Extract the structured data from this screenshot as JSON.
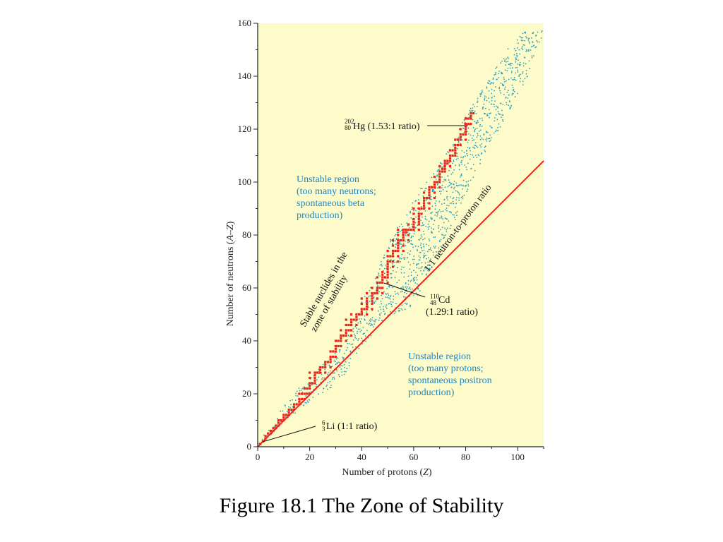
{
  "caption": "Figure 18.1 The Zone of Stability",
  "chart_data": {
    "type": "scatter",
    "xlabel_main": "Number of protons (",
    "xlabel_var": "Z",
    "xlabel_end": ")",
    "ylabel_main": "Number of neutrons (",
    "ylabel_var": "A–Z",
    "ylabel_end": ")",
    "xlim": [
      0,
      110
    ],
    "ylim": [
      0,
      160
    ],
    "x_ticks": [
      0,
      20,
      40,
      60,
      80,
      100
    ],
    "y_ticks": [
      0,
      20,
      40,
      60,
      80,
      100,
      120,
      140,
      160
    ],
    "grid": false,
    "colors": {
      "background": "#fdfbc9",
      "stable": "#e8241b",
      "unstable": "#2a9fb8",
      "ratio_line": "#e8241b"
    },
    "series": [
      {
        "role": "stable",
        "points": [
          [
            1,
            1
          ],
          [
            2,
            2
          ],
          [
            3,
            3
          ],
          [
            3,
            4
          ],
          [
            4,
            5
          ],
          [
            5,
            5
          ],
          [
            5,
            6
          ],
          [
            6,
            6
          ],
          [
            6,
            7
          ],
          [
            7,
            7
          ],
          [
            7,
            8
          ],
          [
            8,
            8
          ],
          [
            8,
            9
          ],
          [
            8,
            10
          ],
          [
            9,
            10
          ],
          [
            10,
            10
          ],
          [
            10,
            11
          ],
          [
            10,
            12
          ],
          [
            11,
            12
          ],
          [
            12,
            12
          ],
          [
            12,
            13
          ],
          [
            12,
            14
          ],
          [
            13,
            14
          ],
          [
            14,
            14
          ],
          [
            14,
            15
          ],
          [
            14,
            16
          ],
          [
            15,
            16
          ],
          [
            16,
            16
          ],
          [
            16,
            17
          ],
          [
            16,
            18
          ],
          [
            16,
            20
          ],
          [
            17,
            18
          ],
          [
            17,
            20
          ],
          [
            18,
            18
          ],
          [
            18,
            20
          ],
          [
            18,
            22
          ],
          [
            19,
            20
          ],
          [
            19,
            22
          ],
          [
            20,
            20
          ],
          [
            20,
            22
          ],
          [
            20,
            23
          ],
          [
            20,
            24
          ],
          [
            20,
            26
          ],
          [
            20,
            28
          ],
          [
            21,
            24
          ],
          [
            22,
            24
          ],
          [
            22,
            25
          ],
          [
            22,
            26
          ],
          [
            22,
            27
          ],
          [
            22,
            28
          ],
          [
            23,
            28
          ],
          [
            24,
            28
          ],
          [
            24,
            29
          ],
          [
            24,
            30
          ],
          [
            25,
            30
          ],
          [
            26,
            28
          ],
          [
            26,
            30
          ],
          [
            26,
            31
          ],
          [
            26,
            32
          ],
          [
            27,
            32
          ],
          [
            28,
            30
          ],
          [
            28,
            32
          ],
          [
            28,
            33
          ],
          [
            28,
            34
          ],
          [
            28,
            36
          ],
          [
            29,
            34
          ],
          [
            29,
            36
          ],
          [
            30,
            34
          ],
          [
            30,
            36
          ],
          [
            30,
            37
          ],
          [
            30,
            38
          ],
          [
            30,
            40
          ],
          [
            31,
            38
          ],
          [
            31,
            40
          ],
          [
            32,
            38
          ],
          [
            32,
            40
          ],
          [
            32,
            41
          ],
          [
            32,
            42
          ],
          [
            32,
            44
          ],
          [
            33,
            42
          ],
          [
            34,
            40
          ],
          [
            34,
            42
          ],
          [
            34,
            43
          ],
          [
            34,
            44
          ],
          [
            34,
            46
          ],
          [
            34,
            48
          ],
          [
            35,
            44
          ],
          [
            35,
            46
          ],
          [
            36,
            42
          ],
          [
            36,
            44
          ],
          [
            36,
            46
          ],
          [
            36,
            47
          ],
          [
            36,
            48
          ],
          [
            36,
            50
          ],
          [
            37,
            48
          ],
          [
            38,
            46
          ],
          [
            38,
            48
          ],
          [
            38,
            49
          ],
          [
            38,
            50
          ],
          [
            39,
            50
          ],
          [
            40,
            50
          ],
          [
            40,
            51
          ],
          [
            40,
            52
          ],
          [
            40,
            54
          ],
          [
            40,
            56
          ],
          [
            41,
            52
          ],
          [
            42,
            50
          ],
          [
            42,
            52
          ],
          [
            42,
            53
          ],
          [
            42,
            54
          ],
          [
            42,
            55
          ],
          [
            42,
            56
          ],
          [
            42,
            58
          ],
          [
            44,
            52
          ],
          [
            44,
            54
          ],
          [
            44,
            55
          ],
          [
            44,
            56
          ],
          [
            44,
            57
          ],
          [
            44,
            58
          ],
          [
            44,
            60
          ],
          [
            45,
            58
          ],
          [
            46,
            56
          ],
          [
            46,
            58
          ],
          [
            46,
            59
          ],
          [
            46,
            60
          ],
          [
            46,
            62
          ],
          [
            46,
            64
          ],
          [
            47,
            60
          ],
          [
            47,
            62
          ],
          [
            48,
            58
          ],
          [
            48,
            60
          ],
          [
            48,
            62
          ],
          [
            48,
            63
          ],
          [
            48,
            64
          ],
          [
            48,
            65
          ],
          [
            48,
            66
          ],
          [
            49,
            64
          ],
          [
            50,
            62
          ],
          [
            50,
            64
          ],
          [
            50,
            65
          ],
          [
            50,
            66
          ],
          [
            50,
            67
          ],
          [
            50,
            68
          ],
          [
            50,
            69
          ],
          [
            50,
            70
          ],
          [
            50,
            72
          ],
          [
            50,
            74
          ],
          [
            51,
            70
          ],
          [
            51,
            72
          ],
          [
            52,
            68
          ],
          [
            52,
            70
          ],
          [
            52,
            72
          ],
          [
            52,
            73
          ],
          [
            52,
            74
          ],
          [
            52,
            76
          ],
          [
            52,
            78
          ],
          [
            53,
            74
          ],
          [
            54,
            70
          ],
          [
            54,
            72
          ],
          [
            54,
            74
          ],
          [
            54,
            75
          ],
          [
            54,
            76
          ],
          [
            54,
            77
          ],
          [
            54,
            78
          ],
          [
            54,
            80
          ],
          [
            54,
            82
          ],
          [
            55,
            78
          ],
          [
            56,
            74
          ],
          [
            56,
            76
          ],
          [
            56,
            78
          ],
          [
            56,
            79
          ],
          [
            56,
            80
          ],
          [
            56,
            81
          ],
          [
            56,
            82
          ],
          [
            57,
            81
          ],
          [
            57,
            82
          ],
          [
            58,
            78
          ],
          [
            58,
            80
          ],
          [
            58,
            82
          ],
          [
            58,
            84
          ],
          [
            59,
            82
          ],
          [
            60,
            82
          ],
          [
            60,
            83
          ],
          [
            60,
            84
          ],
          [
            60,
            85
          ],
          [
            60,
            86
          ],
          [
            60,
            88
          ],
          [
            60,
            90
          ],
          [
            62,
            82
          ],
          [
            62,
            84
          ],
          [
            62,
            85
          ],
          [
            62,
            86
          ],
          [
            62,
            87
          ],
          [
            62,
            88
          ],
          [
            62,
            90
          ],
          [
            62,
            92
          ],
          [
            63,
            88
          ],
          [
            63,
            90
          ],
          [
            64,
            90
          ],
          [
            64,
            91
          ],
          [
            64,
            92
          ],
          [
            64,
            93
          ],
          [
            64,
            94
          ],
          [
            64,
            96
          ],
          [
            65,
            94
          ],
          [
            66,
            90
          ],
          [
            66,
            92
          ],
          [
            66,
            94
          ],
          [
            66,
            95
          ],
          [
            66,
            96
          ],
          [
            66,
            97
          ],
          [
            66,
            98
          ],
          [
            67,
            98
          ],
          [
            68,
            94
          ],
          [
            68,
            96
          ],
          [
            68,
            98
          ],
          [
            68,
            99
          ],
          [
            68,
            100
          ],
          [
            68,
            102
          ],
          [
            69,
            100
          ],
          [
            70,
            98
          ],
          [
            70,
            100
          ],
          [
            70,
            101
          ],
          [
            70,
            102
          ],
          [
            70,
            103
          ],
          [
            70,
            104
          ],
          [
            70,
            106
          ],
          [
            71,
            104
          ],
          [
            71,
            105
          ],
          [
            72,
            104
          ],
          [
            72,
            105
          ],
          [
            72,
            106
          ],
          [
            72,
            107
          ],
          [
            72,
            108
          ],
          [
            73,
            107
          ],
          [
            73,
            108
          ],
          [
            74,
            106
          ],
          [
            74,
            108
          ],
          [
            74,
            109
          ],
          [
            74,
            110
          ],
          [
            74,
            112
          ],
          [
            75,
            110
          ],
          [
            75,
            112
          ],
          [
            76,
            110
          ],
          [
            76,
            111
          ],
          [
            76,
            112
          ],
          [
            76,
            113
          ],
          [
            76,
            114
          ],
          [
            76,
            116
          ],
          [
            77,
            114
          ],
          [
            77,
            116
          ],
          [
            78,
            114
          ],
          [
            78,
            116
          ],
          [
            78,
            117
          ],
          [
            78,
            118
          ],
          [
            78,
            120
          ],
          [
            79,
            118
          ],
          [
            80,
            116
          ],
          [
            80,
            118
          ],
          [
            80,
            119
          ],
          [
            80,
            120
          ],
          [
            80,
            121
          ],
          [
            80,
            122
          ],
          [
            80,
            124
          ],
          [
            81,
            122
          ],
          [
            81,
            124
          ],
          [
            82,
            122
          ],
          [
            82,
            124
          ],
          [
            82,
            125
          ],
          [
            82,
            126
          ],
          [
            83,
            126
          ]
        ]
      }
    ],
    "unstable_band": {
      "lower": [
        [
          0,
          0
        ],
        [
          10,
          9
        ],
        [
          20,
          17
        ],
        [
          28,
          22
        ],
        [
          34,
          28
        ],
        [
          40,
          38
        ],
        [
          48,
          48
        ],
        [
          52,
          50
        ],
        [
          58,
          52
        ],
        [
          64,
          62
        ],
        [
          68,
          72
        ],
        [
          74,
          82
        ],
        [
          80,
          95
        ],
        [
          86,
          108
        ],
        [
          92,
          118
        ],
        [
          98,
          128
        ],
        [
          104,
          140
        ],
        [
          108,
          152
        ],
        [
          110,
          157
        ]
      ],
      "upper": [
        [
          0,
          2
        ],
        [
          4,
          6
        ],
        [
          8,
          12
        ],
        [
          12,
          18
        ],
        [
          16,
          22
        ],
        [
          20,
          26
        ],
        [
          24,
          30
        ],
        [
          28,
          34
        ],
        [
          34,
          40
        ],
        [
          38,
          50
        ],
        [
          44,
          62
        ],
        [
          48,
          72
        ],
        [
          54,
          84
        ],
        [
          60,
          94
        ],
        [
          66,
          102
        ],
        [
          72,
          110
        ],
        [
          78,
          122
        ],
        [
          82,
          128
        ],
        [
          88,
          138
        ],
        [
          96,
          150
        ],
        [
          102,
          157
        ],
        [
          110,
          158
        ]
      ]
    },
    "ratio_line": {
      "from": [
        0,
        0
      ],
      "to": [
        110,
        108
      ]
    },
    "annotations": {
      "hg": {
        "mass": "202",
        "z": "80",
        "symbol": "Hg",
        "ratio": " (1.53:1 ratio)",
        "point": [
          82,
          121
        ]
      },
      "cd": {
        "mass": "110",
        "z": "48",
        "symbol": "Cd",
        "ratio": "(1.29:1 ratio)",
        "point": [
          48,
          62
        ]
      },
      "li": {
        "mass": "6",
        "z": "3",
        "symbol": "Li",
        "ratio": " (1:1 ratio)",
        "point": [
          2,
          2
        ]
      },
      "line_label": "1:1 neutron-to-proton ratio",
      "stable_label_1": "Stable nuclides in the",
      "stable_label_2": "zone of stability",
      "unstable_upper": [
        "Unstable region",
        "(too many neutrons;",
        "spontaneous beta",
        "production)"
      ],
      "unstable_lower": [
        "Unstable region",
        "(too many protons;",
        "spontaneous positron",
        "production)"
      ]
    }
  }
}
